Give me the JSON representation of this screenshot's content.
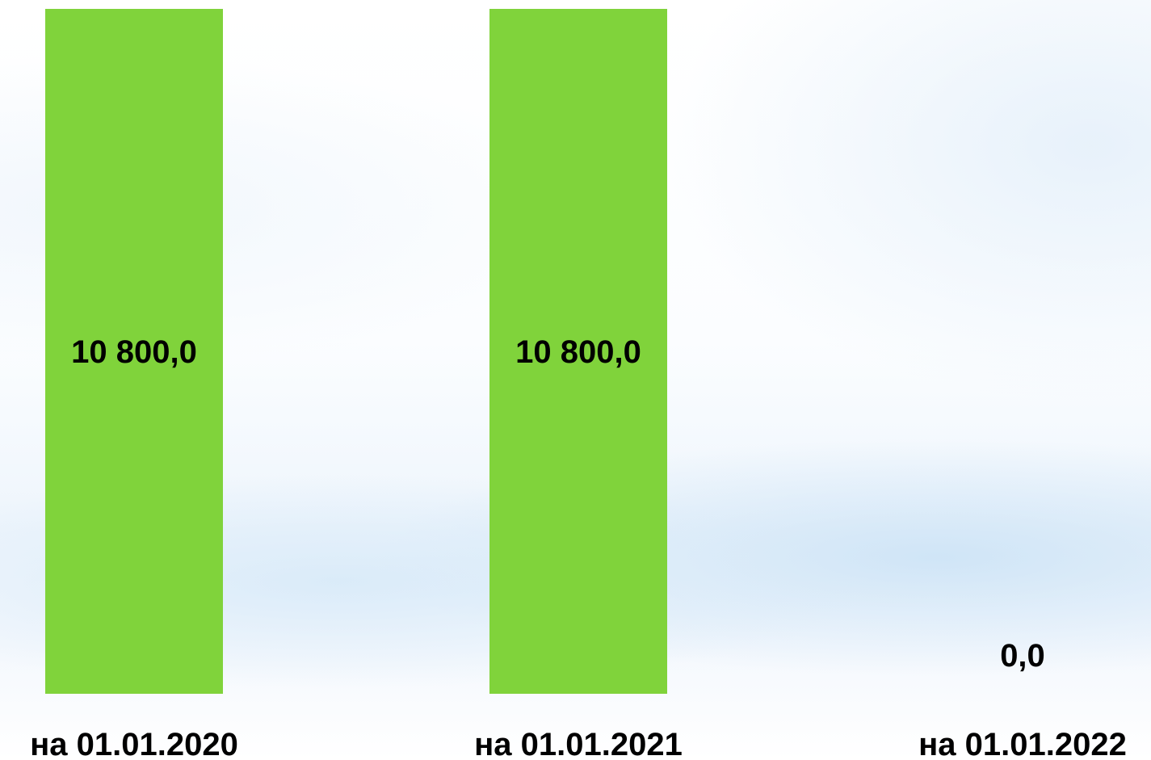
{
  "chart_data": {
    "type": "bar",
    "categories": [
      "на 01.01.2020",
      "на 01.01.2021",
      "на 01.01.2022"
    ],
    "values": [
      10800.0,
      10800.0,
      0.0
    ],
    "data_labels": [
      "10 800,0",
      "10 800,0",
      "0,0"
    ],
    "title": "",
    "xlabel": "",
    "ylabel": "",
    "ylim": [
      0,
      10800
    ],
    "grid": false,
    "legend": "none",
    "bar_color": "#80D33B"
  }
}
